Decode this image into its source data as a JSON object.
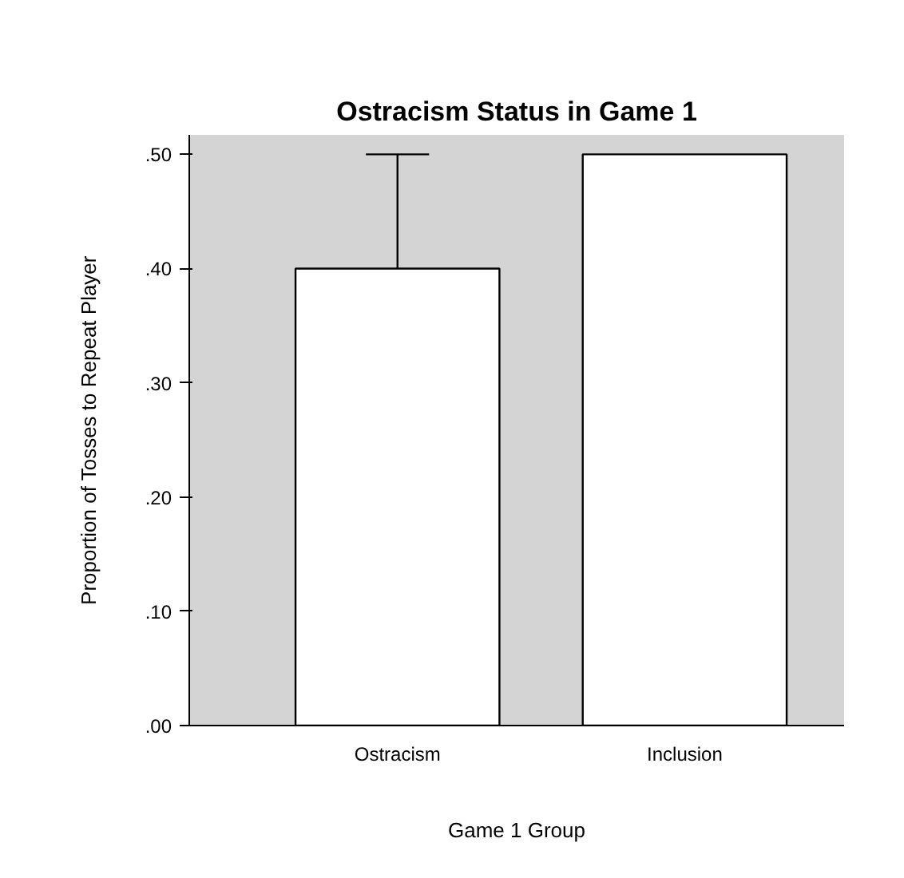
{
  "chart_data": {
    "type": "bar",
    "title": "Ostracism Status in Game 1",
    "xlabel": "Game 1 Group",
    "ylabel": "Proportion of Tosses to Repeat Player",
    "categories": [
      "Ostracism",
      "Inclusion"
    ],
    "values": [
      0.4,
      0.5
    ],
    "errors": [
      [
        0.4,
        0.5
      ],
      null
    ],
    "color": "#ffffff",
    "ylim": [
      0,
      0.517
    ],
    "yticks": [
      {
        "value": 0,
        "label": ".00"
      },
      {
        "value": 0.1,
        "label": ".10"
      },
      {
        "value": 0.2,
        "label": ".20"
      },
      {
        "value": 0.3,
        "label": ".30"
      },
      {
        "value": 0.4,
        "label": ".40"
      },
      {
        "value": 0.5,
        "label": ".50"
      }
    ]
  }
}
